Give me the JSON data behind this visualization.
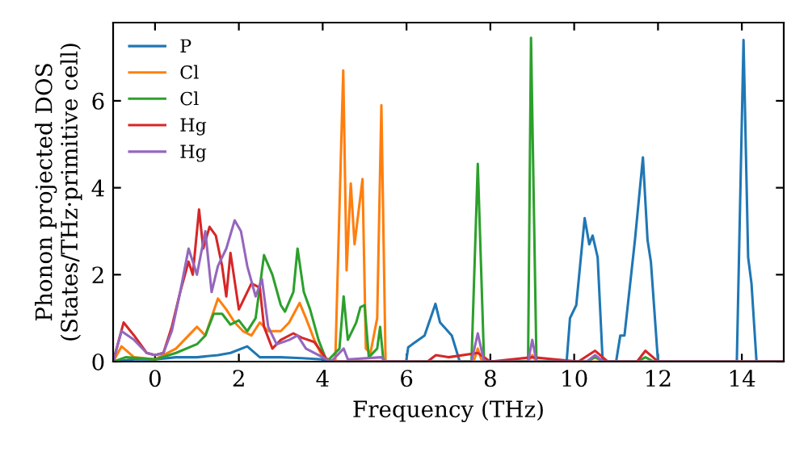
{
  "chart_data": {
    "type": "line",
    "xlabel": "Frequency (THz)",
    "ylabel": "Phonon projected DOS\n(States/THz·primitive cell)",
    "xlim": [
      -1,
      15
    ],
    "ylim": [
      0,
      7.8
    ],
    "xticks": [
      0,
      2,
      4,
      6,
      8,
      10,
      12,
      14
    ],
    "yticks": [
      0,
      2,
      4,
      6
    ],
    "legend": "top left",
    "grid": false,
    "line_style": "solid",
    "series": [
      {
        "name": "P",
        "color": "#1f77b4",
        "x": [
          -1,
          -0.5,
          0,
          0.5,
          1,
          1.5,
          1.8,
          2.2,
          2.5,
          3,
          3.5,
          4,
          4.2,
          5.99,
          6.04,
          6.43,
          6.69,
          6.8,
          7.08,
          7.27,
          9.82,
          9.9,
          10.05,
          10.25,
          10.36,
          10.44,
          10.56,
          10.68,
          11.0,
          11.1,
          11.2,
          11.45,
          11.64,
          11.75,
          11.83,
          12.0,
          13.88,
          14.04,
          14.15,
          14.23,
          14.35,
          15
        ],
        "values": [
          0,
          0.05,
          0.05,
          0.1,
          0.1,
          0.15,
          0.2,
          0.35,
          0.1,
          0.1,
          0.08,
          0.05,
          0,
          0,
          0.33,
          0.6,
          1.33,
          0.9,
          0.6,
          0,
          0,
          1.0,
          1.3,
          3.3,
          2.7,
          2.9,
          2.4,
          0,
          0,
          0.6,
          0.6,
          2.8,
          4.7,
          2.8,
          2.3,
          0,
          0,
          7.4,
          2.4,
          1.8,
          0,
          0
        ]
      },
      {
        "name": "Cl",
        "color": "#ff7f0e",
        "x": [
          -1,
          -0.8,
          -0.5,
          0,
          0.5,
          1.0,
          1.2,
          1.5,
          1.7,
          1.9,
          2.1,
          2.3,
          2.5,
          2.7,
          3.0,
          3.2,
          3.45,
          3.6,
          3.8,
          4.0,
          4.3,
          4.49,
          4.57,
          4.67,
          4.76,
          4.95,
          5.03,
          5.14,
          5.3,
          5.4,
          5.5,
          7.6,
          7.7,
          7.8,
          8.9,
          9.0,
          9.1,
          15
        ],
        "values": [
          0,
          0.35,
          0.1,
          0.05,
          0.3,
          0.8,
          0.6,
          1.45,
          1.2,
          0.9,
          0.7,
          0.6,
          0.9,
          0.7,
          0.7,
          0.9,
          1.35,
          1.0,
          0.5,
          0.1,
          0,
          6.7,
          2.1,
          4.1,
          2.7,
          4.2,
          0.3,
          0.2,
          1.0,
          5.9,
          0,
          0,
          0.3,
          0,
          0,
          0.15,
          0,
          0
        ]
      },
      {
        "name": "Cl",
        "color": "#2ca02c",
        "x": [
          -1,
          -0.7,
          0,
          0.5,
          1,
          1.2,
          1.4,
          1.6,
          1.8,
          2,
          2.2,
          2.4,
          2.6,
          2.8,
          3.0,
          3.1,
          3.3,
          3.4,
          3.55,
          3.7,
          3.9,
          4.1,
          4.4,
          4.5,
          4.6,
          4.7,
          4.8,
          4.9,
          5.0,
          5.1,
          5.3,
          5.37,
          5.45,
          7.55,
          7.7,
          7.85,
          8.9,
          8.97,
          9.1,
          10.3,
          10.5,
          10.7,
          11.5,
          11.7,
          11.9,
          15
        ],
        "values": [
          0,
          0.1,
          0.05,
          0.2,
          0.4,
          0.6,
          1.1,
          1.1,
          0.85,
          0.95,
          0.7,
          1.0,
          2.45,
          2.0,
          1.3,
          1.15,
          1.6,
          2.6,
          1.6,
          1.2,
          0.5,
          0,
          0.3,
          1.5,
          0.5,
          0.7,
          0.9,
          1.25,
          1.3,
          0.1,
          0.3,
          0.8,
          0,
          0,
          4.55,
          0,
          0,
          7.45,
          0,
          0,
          0.1,
          0,
          0,
          0.1,
          0,
          0
        ]
      },
      {
        "name": "Hg",
        "color": "#d62728",
        "x": [
          -1,
          -0.75,
          -0.5,
          -0.2,
          0,
          0.2,
          0.4,
          0.6,
          0.8,
          0.9,
          1.05,
          1.15,
          1.3,
          1.45,
          1.6,
          1.7,
          1.8,
          2.0,
          2.3,
          2.5,
          2.6,
          2.8,
          3.0,
          3.3,
          3.5,
          3.8,
          4.1,
          4.2,
          6.5,
          6.7,
          7.0,
          7.7,
          8.0,
          9.0,
          10.1,
          10.5,
          10.8,
          11.5,
          11.7,
          12.0,
          15
        ],
        "values": [
          0,
          0.9,
          0.6,
          0.2,
          0.15,
          0.2,
          0.8,
          1.6,
          2.3,
          2.0,
          3.5,
          2.6,
          3.1,
          2.9,
          2.2,
          1.5,
          2.5,
          1.2,
          1.8,
          1.7,
          0.8,
          0.3,
          0.5,
          0.65,
          0.55,
          0.45,
          0.05,
          0,
          0,
          0.15,
          0.1,
          0.2,
          0,
          0.1,
          0,
          0.25,
          0,
          0,
          0.25,
          0,
          0
        ]
      },
      {
        "name": "Hg",
        "color": "#9467bd",
        "x": [
          -1,
          -0.8,
          -0.5,
          -0.2,
          0,
          0.2,
          0.4,
          0.6,
          0.8,
          1.0,
          1.2,
          1.35,
          1.5,
          1.7,
          1.9,
          2.05,
          2.2,
          2.4,
          2.55,
          2.7,
          2.9,
          3.2,
          3.4,
          3.6,
          4.0,
          4.2,
          4.5,
          4.6,
          5.4,
          5.5,
          7.55,
          7.7,
          7.85,
          8.9,
          9.0,
          9.1,
          10.3,
          10.5,
          10.7,
          15
        ],
        "values": [
          0,
          0.7,
          0.5,
          0.2,
          0.15,
          0.2,
          0.7,
          1.6,
          2.6,
          2.0,
          3.0,
          1.6,
          2.2,
          2.6,
          3.25,
          3.0,
          2.2,
          1.5,
          1.9,
          0.8,
          0.4,
          0.5,
          0.6,
          0.3,
          0.1,
          0,
          0.3,
          0.05,
          0.1,
          0,
          0,
          0.65,
          0,
          0,
          0.5,
          0,
          0,
          0.15,
          0,
          0
        ]
      }
    ]
  }
}
